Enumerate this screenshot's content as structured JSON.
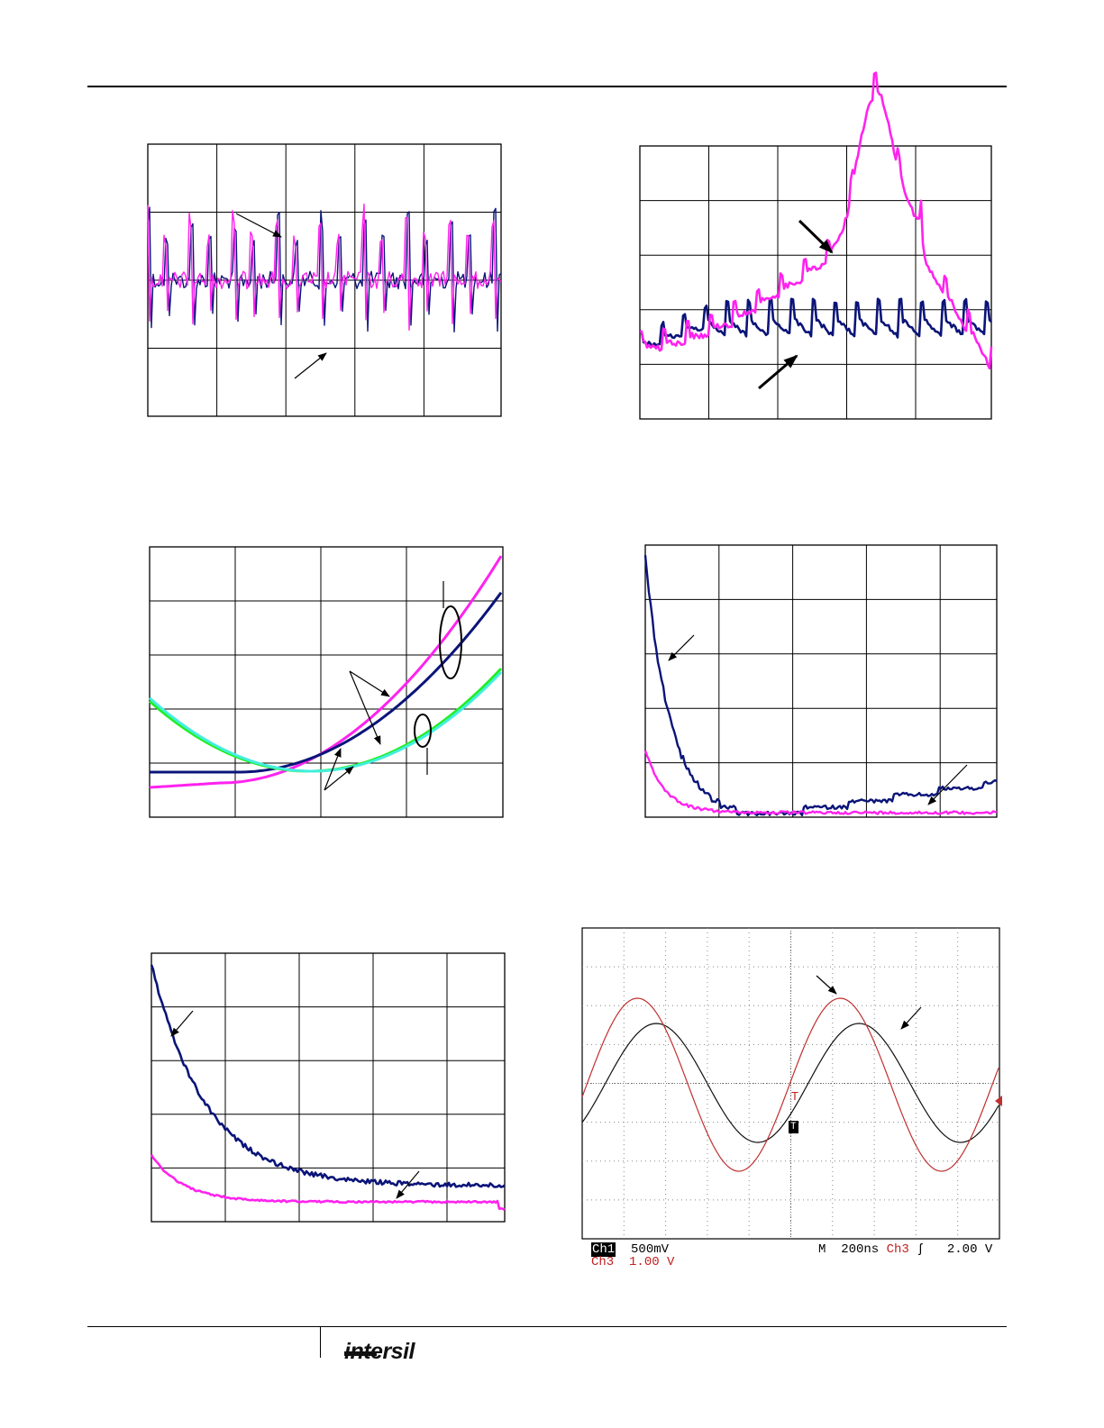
{
  "page": {
    "logo_text": "intersil"
  },
  "colors": {
    "navy": "#0a1478",
    "magenta": "#ff22ee",
    "green": "#22ee22",
    "cyan": "#44eedd",
    "scope_red": "#c03030",
    "scope_black": "#111111"
  },
  "scope": {
    "ch1_label": "Ch1",
    "ch1_scale": "500mV",
    "ch3_label": "Ch3",
    "ch3_scale": "1.00 V",
    "time_label": "M  200ns",
    "trigger_channel": "Ch3",
    "trigger_symbol": "ʃ",
    "trigger_level": "2.00 V",
    "marker_red": "T",
    "marker_black": "T"
  },
  "chart_data": [
    {
      "type": "line",
      "panel": "top-left",
      "grid": {
        "cols": 5,
        "rows": 4
      },
      "series": [
        {
          "color": "magenta",
          "pattern": "noise-spikes"
        },
        {
          "color": "navy",
          "pattern": "noise-spikes"
        }
      ]
    },
    {
      "type": "line",
      "panel": "top-right",
      "grid": {
        "cols": 5,
        "rows": 5
      },
      "series": [
        {
          "color": "magenta",
          "pattern": "rising-peak"
        },
        {
          "color": "navy",
          "pattern": "flat-noise"
        }
      ]
    },
    {
      "type": "line",
      "panel": "middle-left",
      "grid": {
        "cols": 4,
        "rows": 5
      },
      "series": [
        {
          "color": "magenta",
          "pattern": "parabola"
        },
        {
          "color": "navy",
          "pattern": "parabola"
        },
        {
          "color": "green",
          "pattern": "parabola"
        },
        {
          "color": "cyan",
          "pattern": "parabola"
        }
      ]
    },
    {
      "type": "line",
      "panel": "middle-right",
      "grid": {
        "cols": 5,
        "rows": 5
      },
      "series": [
        {
          "color": "navy",
          "pattern": "decay"
        },
        {
          "color": "magenta",
          "pattern": "decay"
        }
      ]
    },
    {
      "type": "line",
      "panel": "bottom-left",
      "grid": {
        "cols": 5,
        "rows": 5
      },
      "series": [
        {
          "color": "navy",
          "pattern": "decay"
        },
        {
          "color": "magenta",
          "pattern": "decay"
        }
      ]
    },
    {
      "type": "line",
      "panel": "bottom-right-scope",
      "grid": {
        "cols": 10,
        "rows": 8
      },
      "series": [
        {
          "name": "Ch3",
          "color": "scope_red",
          "pattern": "sine"
        },
        {
          "name": "Ch1",
          "color": "scope_black",
          "pattern": "sine"
        }
      ]
    }
  ]
}
